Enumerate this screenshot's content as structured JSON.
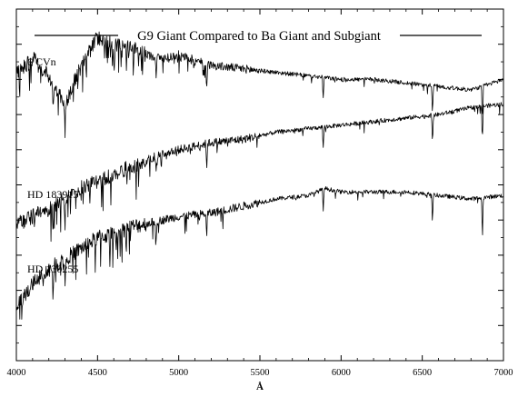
{
  "chart_data": {
    "type": "line",
    "title": "G9 Giant Compared to Ba Giant and Subgiant",
    "xlabel": "Å",
    "ylabel": "",
    "xlim": [
      4000,
      7000
    ],
    "x_ticks": [
      4000,
      4500,
      5000,
      5500,
      6000,
      6500,
      7000
    ],
    "x_tick_labels": [
      "4000",
      "4500",
      "5000",
      "5500",
      "6000",
      "6500",
      "7000"
    ],
    "y_ticks_visible": true,
    "y_tick_labels_visible": false,
    "grid": false,
    "legend": "none",
    "ylim": [
      0,
      10
    ],
    "series": [
      {
        "name": "6 CVn",
        "x": [
          4000,
          4100,
          4200,
          4300,
          4400,
          4500,
          4600,
          4700,
          4800,
          4900,
          5000,
          5200,
          5400,
          5600,
          5800,
          6000,
          6200,
          6400,
          6600,
          6800,
          7000
        ],
        "y": [
          8.2,
          8.6,
          8.1,
          7.3,
          8.4,
          9.2,
          9.0,
          8.9,
          8.7,
          8.6,
          8.7,
          8.4,
          8.3,
          8.2,
          8.1,
          8.0,
          8.0,
          7.9,
          7.8,
          7.7,
          8.0
        ]
      },
      {
        "name": "HD 183915",
        "x": [
          4000,
          4100,
          4200,
          4300,
          4400,
          4500,
          4600,
          4700,
          4800,
          4900,
          5000,
          5200,
          5400,
          5600,
          5800,
          6000,
          6200,
          6400,
          6600,
          6800,
          7000
        ],
        "y": [
          3.9,
          4.1,
          4.3,
          4.6,
          4.9,
          5.1,
          5.3,
          5.5,
          5.7,
          5.9,
          6.0,
          6.2,
          6.3,
          6.5,
          6.6,
          6.7,
          6.8,
          6.9,
          7.0,
          7.2,
          7.3
        ]
      },
      {
        "name": "HD 130255",
        "x": [
          4000,
          4100,
          4200,
          4300,
          4400,
          4500,
          4600,
          4700,
          4800,
          4900,
          5000,
          5200,
          5400,
          5600,
          5800,
          5900,
          6000,
          6200,
          6400,
          6600,
          6800,
          7000
        ],
        "y": [
          1.5,
          2.2,
          2.6,
          2.9,
          3.2,
          3.5,
          3.6,
          3.8,
          3.9,
          4.0,
          4.1,
          4.2,
          4.4,
          4.6,
          4.7,
          4.9,
          4.8,
          4.8,
          4.8,
          4.7,
          4.6,
          4.7
        ]
      }
    ],
    "absorption_lines": [
      4226,
      4300,
      4861,
      5172,
      5890,
      6563,
      6870
    ]
  }
}
